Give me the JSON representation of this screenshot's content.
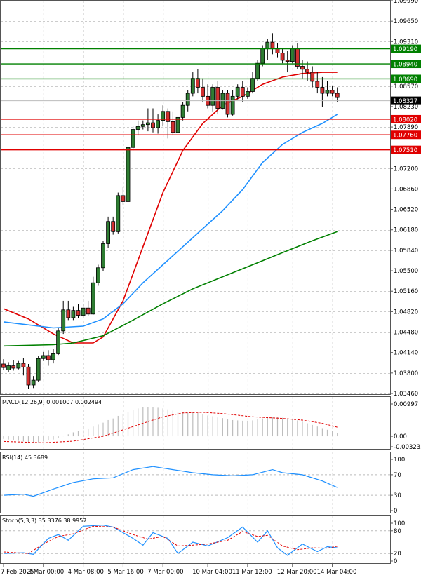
{
  "chart_data": {
    "type": "candlestick",
    "instrument": "",
    "price_axis": {
      "ylim": [
        1.0346,
        1.0999
      ],
      "ticks": [
        "1.09990",
        "1.09650",
        "1.09310",
        "1.08570",
        "1.08230",
        "1.07890",
        "1.07200",
        "1.06860",
        "1.06520",
        "1.06180",
        "1.05840",
        "1.05500",
        "1.05160",
        "1.04820",
        "1.04480",
        "1.04140",
        "1.03800",
        "1.03460"
      ],
      "current_price": "1.08327"
    },
    "levels": [
      {
        "value": "1.09190",
        "color": "#008000"
      },
      {
        "value": "1.08940",
        "color": "#008000"
      },
      {
        "value": "1.08690",
        "color": "#008000"
      },
      {
        "value": "1.08020",
        "color": "#e00000"
      },
      {
        "value": "1.07760",
        "color": "#e00000"
      },
      {
        "value": "1.07510",
        "color": "#e00000"
      }
    ],
    "x_labels": [
      "7 Feb 2025",
      "3 Mar 00:00",
      "4 Mar 08:00",
      "5 Mar 16:00",
      "7 Mar 00:00",
      "10 Mar 04:00",
      "11 Mar 12:00",
      "12 Mar 20:00",
      "14 Mar 04:00"
    ],
    "candles": [
      [
        1.0395,
        1.0403,
        1.0389,
        1.0385
      ],
      [
        1.0385,
        1.0398,
        1.0392,
        1.0382
      ],
      [
        1.0392,
        1.0401,
        1.0388,
        1.0384
      ],
      [
        1.0388,
        1.04,
        1.0396,
        1.0386
      ],
      [
        1.0396,
        1.0405,
        1.039,
        1.0376
      ],
      [
        1.039,
        1.0395,
        1.036,
        1.0353
      ],
      [
        1.036,
        1.0375,
        1.0368,
        1.0355
      ],
      [
        1.0368,
        1.0408,
        1.0404,
        1.0365
      ],
      [
        1.0404,
        1.0415,
        1.0409,
        1.04
      ],
      [
        1.0409,
        1.0418,
        1.0402,
        1.0392
      ],
      [
        1.0402,
        1.042,
        1.0412,
        1.0396
      ],
      [
        1.0412,
        1.0455,
        1.045,
        1.041
      ],
      [
        1.045,
        1.05,
        1.0485,
        1.0445
      ],
      [
        1.0485,
        1.05,
        1.0472,
        1.0468
      ],
      [
        1.0472,
        1.049,
        1.0484,
        1.0468
      ],
      [
        1.0484,
        1.0495,
        1.0476,
        1.0472
      ],
      [
        1.0476,
        1.0495,
        1.0488,
        1.0474
      ],
      [
        1.0488,
        1.05,
        1.0478,
        1.0475
      ],
      [
        1.0478,
        1.054,
        1.053,
        1.0477
      ],
      [
        1.053,
        1.056,
        1.0555,
        1.0525
      ],
      [
        1.0555,
        1.06,
        1.0595,
        1.055
      ],
      [
        1.0595,
        1.064,
        1.0632,
        1.0588
      ],
      [
        1.0632,
        1.064,
        1.0615,
        1.061
      ],
      [
        1.0615,
        1.068,
        1.0675,
        1.0612
      ],
      [
        1.0675,
        1.069,
        1.0665,
        1.066
      ],
      [
        1.0665,
        1.076,
        1.0755,
        1.0662
      ],
      [
        1.0755,
        1.079,
        1.0785,
        1.075
      ],
      [
        1.0785,
        1.08,
        1.079,
        1.0775
      ],
      [
        1.079,
        1.08,
        1.0793,
        1.0785
      ],
      [
        1.0793,
        1.082,
        1.0796,
        1.0782
      ],
      [
        1.0796,
        1.082,
        1.0788,
        1.078
      ],
      [
        1.0788,
        1.081,
        1.08,
        1.0778
      ],
      [
        1.08,
        1.0825,
        1.0815,
        1.079
      ],
      [
        1.0815,
        1.082,
        1.0798,
        1.077
      ],
      [
        1.0798,
        1.0815,
        1.078,
        1.0775
      ],
      [
        1.078,
        1.081,
        1.0805,
        1.0765
      ],
      [
        1.0805,
        1.083,
        1.0825,
        1.08
      ],
      [
        1.0825,
        1.085,
        1.0845,
        1.0815
      ],
      [
        1.0845,
        1.088,
        1.087,
        1.084
      ],
      [
        1.087,
        1.0885,
        1.0855,
        1.0845
      ],
      [
        1.0855,
        1.087,
        1.084,
        1.083
      ],
      [
        1.084,
        1.086,
        1.0825,
        1.082
      ],
      [
        1.0825,
        1.086,
        1.0855,
        1.0815
      ],
      [
        1.0855,
        1.0865,
        1.082,
        1.081
      ],
      [
        1.082,
        1.085,
        1.0845,
        1.0818
      ],
      [
        1.0845,
        1.085,
        1.081,
        1.0805
      ],
      [
        1.081,
        1.085,
        1.084,
        1.0808
      ],
      [
        1.084,
        1.086,
        1.0855,
        1.0835
      ],
      [
        1.0855,
        1.0865,
        1.084,
        1.083
      ],
      [
        1.084,
        1.0855,
        1.0848,
        1.0836
      ],
      [
        1.0848,
        1.088,
        1.087,
        1.0845
      ],
      [
        1.087,
        1.09,
        1.0895,
        1.0865
      ],
      [
        1.0895,
        1.0925,
        1.092,
        1.089
      ],
      [
        1.092,
        1.0935,
        1.093,
        1.09
      ],
      [
        1.093,
        1.0945,
        1.092,
        1.091
      ],
      [
        1.092,
        1.0928,
        1.0912,
        1.0905
      ],
      [
        1.0912,
        1.092,
        1.09,
        1.0895
      ],
      [
        1.09,
        1.0915,
        1.0898,
        1.088
      ],
      [
        1.0898,
        1.0925,
        1.092,
        1.0895
      ],
      [
        1.092,
        1.0928,
        1.089,
        1.0885
      ],
      [
        1.089,
        1.09,
        1.0885,
        1.087
      ],
      [
        1.0885,
        1.0898,
        1.088,
        1.0865
      ],
      [
        1.088,
        1.089,
        1.0865,
        1.0855
      ],
      [
        1.0865,
        1.088,
        1.0855,
        1.0845
      ],
      [
        1.0855,
        1.0872,
        1.0845,
        1.0822
      ],
      [
        1.0845,
        1.0865,
        1.085,
        1.084
      ],
      [
        1.085,
        1.0858,
        1.0845,
        1.084
      ],
      [
        1.0845,
        1.0855,
        1.0838,
        1.083
      ]
    ],
    "moving_averages": [
      {
        "color": "#e00000",
        "points": [
          [
            0,
            1.0487
          ],
          [
            5,
            1.047
          ],
          [
            10,
            1.0445
          ],
          [
            14,
            1.043
          ],
          [
            18,
            1.043
          ],
          [
            20,
            1.044
          ],
          [
            24,
            1.05
          ],
          [
            28,
            1.059
          ],
          [
            32,
            1.068
          ],
          [
            36,
            1.075
          ],
          [
            40,
            1.0795
          ],
          [
            44,
            1.0825
          ],
          [
            48,
            1.084
          ],
          [
            52,
            1.086
          ],
          [
            56,
            1.0872
          ],
          [
            60,
            1.0878
          ],
          [
            64,
            1.088
          ],
          [
            67,
            1.088
          ]
        ]
      },
      {
        "color": "#1e90ff",
        "points": [
          [
            0,
            1.0465
          ],
          [
            10,
            1.0455
          ],
          [
            16,
            1.0458
          ],
          [
            20,
            1.047
          ],
          [
            24,
            1.0495
          ],
          [
            28,
            1.053
          ],
          [
            32,
            1.056
          ],
          [
            36,
            1.059
          ],
          [
            40,
            1.062
          ],
          [
            44,
            1.065
          ],
          [
            48,
            1.0685
          ],
          [
            52,
            1.073
          ],
          [
            56,
            1.076
          ],
          [
            60,
            1.078
          ],
          [
            64,
            1.0795
          ],
          [
            67,
            1.081
          ]
        ]
      },
      {
        "color": "#008000",
        "points": [
          [
            0,
            1.0425
          ],
          [
            10,
            1.0427
          ],
          [
            14,
            1.043
          ],
          [
            20,
            1.0442
          ],
          [
            26,
            1.0468
          ],
          [
            32,
            1.0495
          ],
          [
            38,
            1.052
          ],
          [
            44,
            1.054
          ],
          [
            50,
            1.056
          ],
          [
            56,
            1.058
          ],
          [
            62,
            1.06
          ],
          [
            67,
            1.0615
          ]
        ]
      }
    ],
    "macd": {
      "label": "MACD(12,26,9) 0.001007 0.002494",
      "ticks": [
        "0.00997",
        "0.00",
        "-0.003235"
      ],
      "ylim": [
        -0.003235,
        0.00997
      ],
      "histogram": [
        -0.0008,
        -0.001,
        -0.0012,
        -0.0014,
        -0.0016,
        -0.0018,
        -0.002,
        -0.0019,
        -0.0016,
        -0.0012,
        -0.001,
        -0.0005,
        0.0002,
        0.0006,
        0.0012,
        0.0016,
        0.002,
        0.0024,
        0.003,
        0.0036,
        0.0042,
        0.005,
        0.0055,
        0.0063,
        0.0068,
        0.0076,
        0.0082,
        0.0086,
        0.0089,
        0.009,
        0.009,
        0.0088,
        0.0086,
        0.0083,
        0.0079,
        0.0076,
        0.0074,
        0.0073,
        0.0073,
        0.0072,
        0.0068,
        0.0064,
        0.0062,
        0.0058,
        0.0056,
        0.0052,
        0.005,
        0.0049,
        0.0048,
        0.0048,
        0.0049,
        0.0052,
        0.0055,
        0.0058,
        0.006,
        0.0059,
        0.0057,
        0.0053,
        0.0052,
        0.0049,
        0.0045,
        0.004,
        0.0035,
        0.003,
        0.0025,
        0.002,
        0.0016,
        0.001
      ],
      "signal": [
        [
          0,
          -0.0016
        ],
        [
          8,
          -0.002
        ],
        [
          14,
          -0.0015
        ],
        [
          20,
          0.0
        ],
        [
          26,
          0.003
        ],
        [
          32,
          0.006
        ],
        [
          36,
          0.0072
        ],
        [
          40,
          0.0074
        ],
        [
          44,
          0.007
        ],
        [
          50,
          0.006
        ],
        [
          56,
          0.0055
        ],
        [
          60,
          0.005
        ],
        [
          64,
          0.004
        ],
        [
          67,
          0.0028
        ]
      ]
    },
    "rsi": {
      "label": "RSI(14) 45.3689",
      "ticks": [
        "100",
        "70",
        "30",
        "0"
      ],
      "ylim": [
        0,
        100
      ],
      "levels": [
        70,
        30
      ],
      "values": [
        [
          0,
          30
        ],
        [
          4,
          32
        ],
        [
          6,
          28
        ],
        [
          10,
          42
        ],
        [
          14,
          55
        ],
        [
          18,
          62
        ],
        [
          22,
          64
        ],
        [
          26,
          80
        ],
        [
          30,
          86
        ],
        [
          34,
          80
        ],
        [
          38,
          74
        ],
        [
          42,
          70
        ],
        [
          46,
          68
        ],
        [
          50,
          70
        ],
        [
          54,
          80
        ],
        [
          56,
          74
        ],
        [
          60,
          70
        ],
        [
          64,
          58
        ],
        [
          67,
          45
        ]
      ]
    },
    "stoch": {
      "label": "Stoch(5,3,3) 35.3376 38.9957",
      "ticks": [
        "100",
        "80",
        "20",
        "0"
      ],
      "ylim": [
        0,
        100
      ],
      "levels": [
        80,
        20
      ],
      "k": [
        [
          0,
          20
        ],
        [
          4,
          22
        ],
        [
          6,
          18
        ],
        [
          9,
          60
        ],
        [
          11,
          70
        ],
        [
          13,
          55
        ],
        [
          16,
          92
        ],
        [
          20,
          95
        ],
        [
          22,
          90
        ],
        [
          26,
          60
        ],
        [
          28,
          42
        ],
        [
          30,
          75
        ],
        [
          33,
          60
        ],
        [
          35,
          20
        ],
        [
          38,
          50
        ],
        [
          41,
          40
        ],
        [
          45,
          62
        ],
        [
          48,
          90
        ],
        [
          51,
          50
        ],
        [
          53,
          80
        ],
        [
          55,
          35
        ],
        [
          57,
          15
        ],
        [
          60,
          45
        ],
        [
          63,
          25
        ],
        [
          65,
          38
        ],
        [
          67,
          35
        ]
      ],
      "d": [
        [
          0,
          24
        ],
        [
          5,
          20
        ],
        [
          8,
          45
        ],
        [
          11,
          65
        ],
        [
          14,
          72
        ],
        [
          18,
          92
        ],
        [
          22,
          90
        ],
        [
          26,
          70
        ],
        [
          29,
          58
        ],
        [
          32,
          65
        ],
        [
          35,
          40
        ],
        [
          38,
          42
        ],
        [
          41,
          45
        ],
        [
          45,
          55
        ],
        [
          48,
          78
        ],
        [
          51,
          65
        ],
        [
          53,
          68
        ],
        [
          56,
          40
        ],
        [
          59,
          30
        ],
        [
          62,
          35
        ],
        [
          65,
          34
        ],
        [
          67,
          39
        ]
      ]
    }
  },
  "ui": {
    "macd_label": "MACD(12,26,9) 0.001007 0.002494",
    "rsi_label": "RSI(14) 45.3689",
    "stoch_label": "Stoch(5,3,3) 35.3376 38.9957"
  }
}
